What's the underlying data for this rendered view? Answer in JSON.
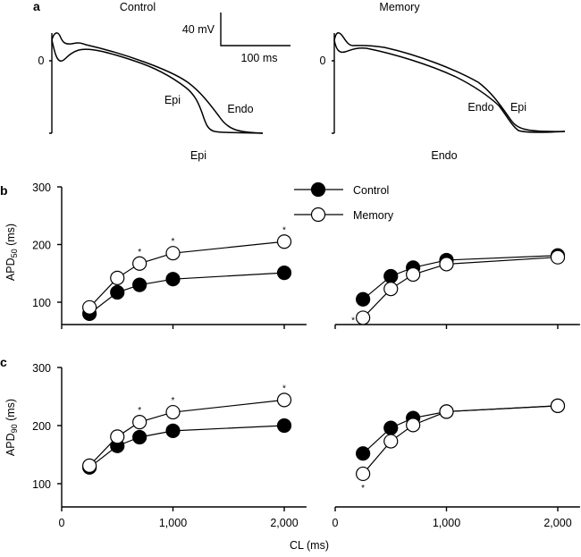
{
  "figure": {
    "panel_a": {
      "label": "a",
      "left_title": "Control",
      "right_title": "Memory",
      "zero_label": "0",
      "scale_voltage": "40 mV",
      "scale_time": "100 ms",
      "left_trace_labels": [
        "Epi",
        "Endo"
      ],
      "right_trace_labels": [
        "Endo",
        "Epi"
      ]
    },
    "column_titles": [
      "Epi",
      "Endo"
    ],
    "shared_xlabel": "CL (ms)",
    "legend": [
      {
        "name": "Control",
        "marker": "filled-circle"
      },
      {
        "name": "Memory",
        "marker": "open-circle"
      }
    ]
  },
  "chart_data": [
    {
      "type": "line",
      "panel": "b",
      "column": "Epi",
      "ylabel_main": "APD",
      "ylabel_sub": "50",
      "ylabel_unit": " (ms)",
      "xlabel": "CL (ms)",
      "x": [
        250,
        500,
        700,
        1000,
        2000
      ],
      "xlim": [
        0,
        2200
      ],
      "ylim": [
        60,
        300
      ],
      "xticks": [
        0,
        1000,
        2000
      ],
      "xtick_labels": [
        "0",
        "1,000",
        "2,000"
      ],
      "yticks": [
        100,
        200,
        300
      ],
      "ytick_labels": [
        "100",
        "200",
        "300"
      ],
      "series": [
        {
          "name": "Control",
          "values": [
            80,
            117,
            130,
            140,
            151
          ],
          "significant": [
            false,
            false,
            false,
            false,
            false
          ]
        },
        {
          "name": "Memory",
          "values": [
            91,
            142,
            167,
            185,
            205
          ],
          "significant": [
            false,
            false,
            true,
            true,
            true
          ]
        }
      ]
    },
    {
      "type": "line",
      "panel": "b",
      "column": "Endo",
      "x": [
        250,
        500,
        700,
        1000,
        2000
      ],
      "xlim": [
        0,
        2200
      ],
      "ylim": [
        60,
        300
      ],
      "xticks": [
        0,
        1000,
        2000
      ],
      "xtick_labels": [
        "0",
        "1,000",
        "2,000"
      ],
      "series": [
        {
          "name": "Control",
          "values": [
            105,
            145,
            160,
            173,
            181
          ],
          "significant": [
            false,
            false,
            false,
            false,
            false
          ]
        },
        {
          "name": "Memory",
          "values": [
            73,
            123,
            148,
            166,
            178
          ],
          "significant": [
            true,
            false,
            false,
            false,
            false
          ]
        }
      ]
    },
    {
      "type": "line",
      "panel": "c",
      "column": "Epi",
      "ylabel_main": "APD",
      "ylabel_sub": "90",
      "ylabel_unit": " (ms)",
      "xlabel": "CL (ms)",
      "x": [
        250,
        500,
        700,
        1000,
        2000
      ],
      "xlim": [
        0,
        2200
      ],
      "ylim": [
        60,
        300
      ],
      "xticks": [
        0,
        1000,
        2000
      ],
      "xtick_labels": [
        "0",
        "1,000",
        "2,000"
      ],
      "yticks": [
        100,
        200,
        300
      ],
      "ytick_labels": [
        "100",
        "200",
        "300"
      ],
      "series": [
        {
          "name": "Control",
          "values": [
            128,
            165,
            180,
            191,
            200
          ],
          "significant": [
            false,
            false,
            false,
            false,
            false
          ]
        },
        {
          "name": "Memory",
          "values": [
            131,
            181,
            206,
            223,
            244
          ],
          "significant": [
            false,
            false,
            true,
            true,
            true
          ]
        }
      ]
    },
    {
      "type": "line",
      "panel": "c",
      "column": "Endo",
      "x": [
        250,
        500,
        700,
        1000,
        2000
      ],
      "xlim": [
        0,
        2200
      ],
      "ylim": [
        60,
        300
      ],
      "xticks": [
        0,
        1000,
        2000
      ],
      "xtick_labels": [
        "0",
        "1,000",
        "2,000"
      ],
      "series": [
        {
          "name": "Control",
          "values": [
            152,
            196,
            213,
            224,
            234
          ],
          "significant": [
            false,
            false,
            false,
            false,
            false
          ]
        },
        {
          "name": "Memory",
          "values": [
            117,
            173,
            201,
            224,
            234
          ],
          "significant": [
            true,
            false,
            false,
            false,
            false
          ]
        }
      ]
    }
  ]
}
